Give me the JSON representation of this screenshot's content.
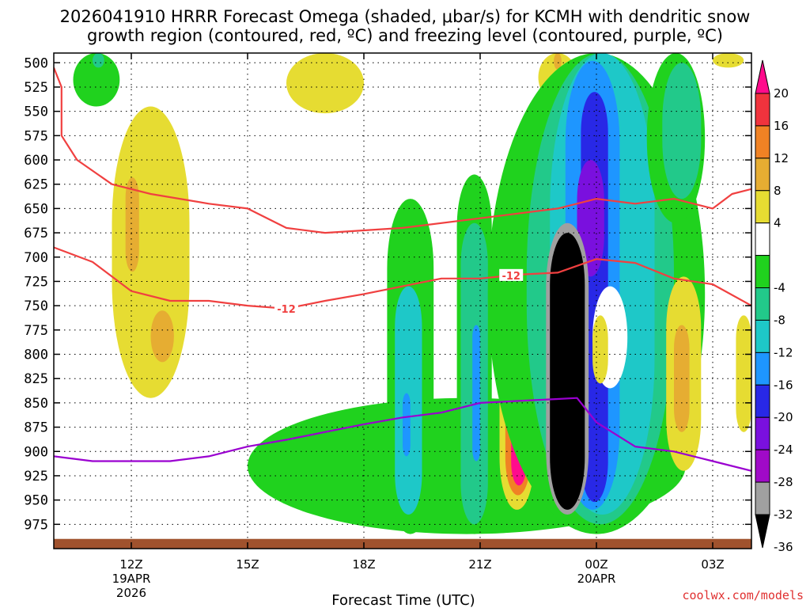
{
  "chart_data": {
    "type": "time-height cross section",
    "title_line1": "2026041910 HRRR Forecast Omega (shaded, μbar/s) for KCMH with dendritic snow",
    "title_line2": "growth region (contoured, red, ºC) and freezing level (contoured, purple, ºC)",
    "xlabel": "Forecast Time (UTC)",
    "credit": "coolwx.com/models",
    "x_range_hours": [
      10,
      28
    ],
    "x_ticks": [
      {
        "hour": 12,
        "label": "12Z",
        "sub1": "19APR",
        "sub2": "2026"
      },
      {
        "hour": 15,
        "label": "15Z",
        "sub1": "",
        "sub2": ""
      },
      {
        "hour": 18,
        "label": "18Z",
        "sub1": "",
        "sub2": ""
      },
      {
        "hour": 21,
        "label": "21Z",
        "sub1": "",
        "sub2": ""
      },
      {
        "hour": 24,
        "label": "00Z",
        "sub1": "20APR",
        "sub2": ""
      },
      {
        "hour": 27,
        "label": "03Z",
        "sub1": "",
        "sub2": ""
      }
    ],
    "y_range_hpa": [
      490,
      1000
    ],
    "y_ticks": [
      500,
      525,
      550,
      575,
      600,
      625,
      650,
      675,
      700,
      725,
      750,
      775,
      800,
      825,
      850,
      875,
      900,
      925,
      950,
      975
    ],
    "colorbar": {
      "tick_labels": [
        "20",
        "16",
        "12",
        "8",
        "4",
        "-4",
        "-8",
        "-12",
        "-16",
        "-20",
        "-24",
        "-28",
        "-32",
        "-36"
      ],
      "bands": [
        {
          "lo": 20,
          "hi": 24,
          "color": "#ff0b8c"
        },
        {
          "lo": 16,
          "hi": 20,
          "color": "#f0333d"
        },
        {
          "lo": 12,
          "hi": 16,
          "color": "#f08224"
        },
        {
          "lo": 8,
          "hi": 12,
          "color": "#e6ad32"
        },
        {
          "lo": 4,
          "hi": 8,
          "color": "#e6dc32"
        },
        {
          "lo": -4,
          "hi": 4,
          "color": "#ffffff"
        },
        {
          "lo": -8,
          "hi": -4,
          "color": "#20d21e"
        },
        {
          "lo": -12,
          "hi": -8,
          "color": "#22c98a"
        },
        {
          "lo": -16,
          "hi": -12,
          "color": "#1ec8c8"
        },
        {
          "lo": -20,
          "hi": -16,
          "color": "#1e96ff"
        },
        {
          "lo": -24,
          "hi": -20,
          "color": "#2828e6"
        },
        {
          "lo": -28,
          "hi": -24,
          "color": "#7a10de"
        },
        {
          "lo": -32,
          "hi": -28,
          "color": "#a00ac8"
        },
        {
          "lo": -36,
          "hi": -32,
          "color": "#a0a0a0"
        },
        {
          "lo": -40,
          "hi": -36,
          "color": "#000000"
        }
      ]
    },
    "omega_features": [
      {
        "name": "upper-left-green",
        "value": -6,
        "t": [
          10.5,
          11.7
        ],
        "p": [
          490,
          545
        ]
      },
      {
        "name": "upper-left-core",
        "value": -10,
        "t": [
          11.0,
          11.3
        ],
        "p": [
          490,
          505
        ]
      },
      {
        "name": "left-yellow-plume",
        "value": 5,
        "t": [
          11.5,
          13.5
        ],
        "p": [
          545,
          845
        ]
      },
      {
        "name": "left-orange-1",
        "value": 9,
        "t": [
          11.85,
          12.2
        ],
        "p": [
          618,
          715
        ]
      },
      {
        "name": "left-orange-2",
        "value": 9,
        "t": [
          12.5,
          13.1
        ],
        "p": [
          755,
          808
        ]
      },
      {
        "name": "upper-mid-yellow",
        "value": 5,
        "t": [
          16.0,
          18.0
        ],
        "p": [
          490,
          552
        ]
      },
      {
        "name": "upper-right-yellow-1",
        "value": 5,
        "t": [
          22.5,
          23.5
        ],
        "p": [
          490,
          540
        ]
      },
      {
        "name": "upper-right-orange",
        "value": 10,
        "t": [
          22.9,
          23.1
        ],
        "p": [
          490,
          507
        ]
      },
      {
        "name": "upper-right-yellow-2",
        "value": 5,
        "t": [
          27.0,
          27.8
        ],
        "p": [
          490,
          505
        ]
      },
      {
        "name": "green-lower-shelf",
        "value": -6,
        "t": [
          15.0,
          26.3
        ],
        "p": [
          845,
          985
        ]
      },
      {
        "name": "green-plume-19z",
        "value": -6,
        "t": [
          18.6,
          19.8
        ],
        "p": [
          640,
          985
        ]
      },
      {
        "name": "cyan-19z",
        "value": -14,
        "t": [
          18.8,
          19.5
        ],
        "p": [
          730,
          965
        ]
      },
      {
        "name": "blue-19z",
        "value": -20,
        "t": [
          19.0,
          19.2
        ],
        "p": [
          840,
          905
        ]
      },
      {
        "name": "green-21z",
        "value": -6,
        "t": [
          20.4,
          21.3
        ],
        "p": [
          615,
          985
        ]
      },
      {
        "name": "teal-21z",
        "value": -10,
        "t": [
          20.5,
          21.2
        ],
        "p": [
          665,
          975
        ]
      },
      {
        "name": "blue-21z",
        "value": -20,
        "t": [
          20.8,
          21.0
        ],
        "p": [
          770,
          910
        ]
      },
      {
        "name": "positive-22z",
        "value": 5,
        "t": [
          21.5,
          22.4
        ],
        "p": [
          690,
          960
        ]
      },
      {
        "name": "orange-22z",
        "value": 12,
        "t": [
          21.65,
          22.3
        ],
        "p": [
          725,
          945
        ]
      },
      {
        "name": "magenta-22z",
        "value": 22,
        "t": [
          21.8,
          22.2
        ],
        "p": [
          755,
          935
        ]
      },
      {
        "name": "main-green",
        "value": -6,
        "t": [
          21.2,
          26.8
        ],
        "p": [
          490,
          985
        ]
      },
      {
        "name": "main-teal",
        "value": -10,
        "t": [
          22.2,
          26.0
        ],
        "p": [
          490,
          975
        ]
      },
      {
        "name": "main-cyan",
        "value": -14,
        "t": [
          22.8,
          25.5
        ],
        "p": [
          490,
          965
        ]
      },
      {
        "name": "main-blue",
        "value": -18,
        "t": [
          23.2,
          24.6
        ],
        "p": [
          498,
          960
        ]
      },
      {
        "name": "main-navy",
        "value": -22,
        "t": [
          23.6,
          24.3
        ],
        "p": [
          530,
          952
        ]
      },
      {
        "name": "main-purple",
        "value": -26,
        "t": [
          23.5,
          24.2
        ],
        "p": [
          600,
          720
        ]
      },
      {
        "name": "core-gray",
        "value": -33,
        "t": [
          22.7,
          23.8
        ],
        "p": [
          665,
          965
        ]
      },
      {
        "name": "core-black",
        "value": -40,
        "t": [
          22.8,
          23.7
        ],
        "p": [
          675,
          960
        ]
      },
      {
        "name": "white-pocket-00z",
        "value": 2,
        "t": [
          23.9,
          24.8
        ],
        "p": [
          730,
          835
        ]
      },
      {
        "name": "yellow-00z",
        "value": 5,
        "t": [
          23.9,
          24.3
        ],
        "p": [
          760,
          830
        ]
      },
      {
        "name": "right-green",
        "value": -6,
        "t": [
          25.3,
          26.8
        ],
        "p": [
          490,
          665
        ]
      },
      {
        "name": "right-teal",
        "value": -10,
        "t": [
          25.7,
          26.7
        ],
        "p": [
          500,
          640
        ]
      },
      {
        "name": "right-yellow-02z",
        "value": 5,
        "t": [
          25.8,
          26.7
        ],
        "p": [
          720,
          920
        ]
      },
      {
        "name": "right-orange-02z",
        "value": 10,
        "t": [
          26.0,
          26.4
        ],
        "p": [
          770,
          880
        ]
      },
      {
        "name": "edge-yellow-03z",
        "value": 5,
        "t": [
          27.6,
          28.0
        ],
        "p": [
          760,
          880
        ]
      }
    ],
    "dgz_top_line": {
      "label": "",
      "points": [
        [
          10.0,
          505
        ],
        [
          10.2,
          525
        ],
        [
          10.2,
          575
        ],
        [
          10.6,
          600
        ],
        [
          11.5,
          625
        ],
        [
          12.5,
          635
        ],
        [
          14.0,
          645
        ],
        [
          15.0,
          650
        ],
        [
          16.0,
          670
        ],
        [
          17.0,
          675
        ],
        [
          19.0,
          670
        ],
        [
          21.0,
          660
        ],
        [
          23.0,
          650
        ],
        [
          24.0,
          640
        ],
        [
          25.0,
          645
        ],
        [
          26.0,
          640
        ],
        [
          27.0,
          650
        ],
        [
          27.5,
          635
        ],
        [
          28.0,
          630
        ]
      ]
    },
    "dgz_bottom_line": {
      "labels": [
        "-12",
        "-12"
      ],
      "label_hours": [
        16.0,
        21.8
      ],
      "points": [
        [
          10.0,
          690
        ],
        [
          11.0,
          705
        ],
        [
          12.0,
          735
        ],
        [
          13.0,
          745
        ],
        [
          14.0,
          745
        ],
        [
          15.0,
          750
        ],
        [
          16.0,
          753
        ],
        [
          17.0,
          745
        ],
        [
          18.0,
          738
        ],
        [
          19.0,
          730
        ],
        [
          20.0,
          722
        ],
        [
          21.0,
          722
        ],
        [
          22.0,
          718
        ],
        [
          23.0,
          716
        ],
        [
          24.0,
          702
        ],
        [
          25.0,
          706
        ],
        [
          26.0,
          722
        ],
        [
          27.0,
          728
        ],
        [
          28.0,
          750
        ]
      ]
    },
    "freezing_level_line": {
      "points": [
        [
          10.0,
          905
        ],
        [
          11.0,
          910
        ],
        [
          13.0,
          910
        ],
        [
          14.0,
          905
        ],
        [
          15.0,
          895
        ],
        [
          16.0,
          888
        ],
        [
          17.0,
          880
        ],
        [
          18.0,
          872
        ],
        [
          19.0,
          865
        ],
        [
          20.0,
          860
        ],
        [
          21.0,
          850
        ],
        [
          22.0,
          848
        ],
        [
          23.0,
          846
        ],
        [
          23.5,
          845
        ],
        [
          24.0,
          870
        ],
        [
          25.0,
          895
        ],
        [
          26.0,
          900
        ],
        [
          27.0,
          910
        ],
        [
          28.0,
          920
        ]
      ]
    },
    "ground_level_hpa": 990,
    "colors": {
      "dgz": "#f04040",
      "freezing": "#9a00d0",
      "ground": "#a0522d",
      "credit": "#e03030",
      "grid": "#000000"
    }
  }
}
